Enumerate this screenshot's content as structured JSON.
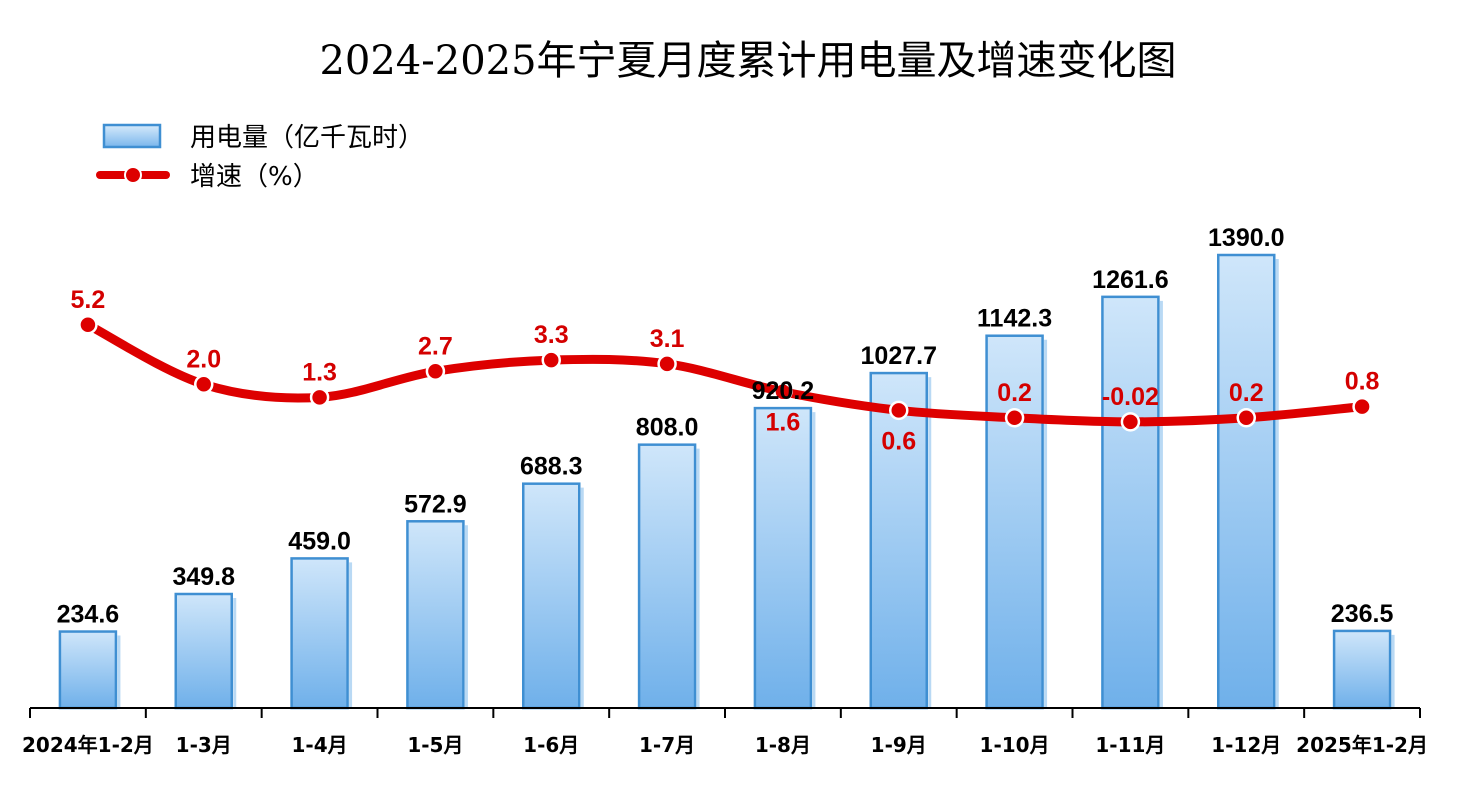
{
  "chart_data": {
    "type": "bar",
    "title": "2024-2025年宁夏月度累计用电量及增速变化图",
    "categories": [
      "2024年1-2月",
      "1-3月",
      "1-4月",
      "1-5月",
      "1-6月",
      "1-7月",
      "1-8月",
      "1-9月",
      "1-10月",
      "1-11月",
      "1-12月",
      "2025年1-2月"
    ],
    "series": [
      {
        "name": "用电量（亿千瓦时）",
        "type": "bar",
        "values": [
          234.6,
          349.8,
          459.0,
          572.9,
          688.3,
          808.0,
          920.2,
          1027.7,
          1142.3,
          1261.6,
          1390.0,
          236.5
        ],
        "labels": [
          "234.6",
          "349.8",
          "459.0",
          "572.9",
          "688.3",
          "808.0",
          "920.2",
          "1027.7",
          "1142.3",
          "1261.6",
          "1390.0",
          "236.5"
        ],
        "color": "#3f8fd2"
      },
      {
        "name": "增速（%）",
        "type": "line",
        "values": [
          5.2,
          2.0,
          1.3,
          2.7,
          3.3,
          3.1,
          1.6,
          0.6,
          0.2,
          -0.02,
          0.2,
          0.8
        ],
        "labels": [
          "5.2",
          "2.0",
          "1.3",
          "2.7",
          "3.3",
          "3.1",
          "1.6",
          "0.6",
          "0.2",
          "-0.02",
          "0.2",
          "0.8"
        ],
        "color": "#dd0000"
      }
    ],
    "legend_position": "top-left",
    "grid": false
  }
}
